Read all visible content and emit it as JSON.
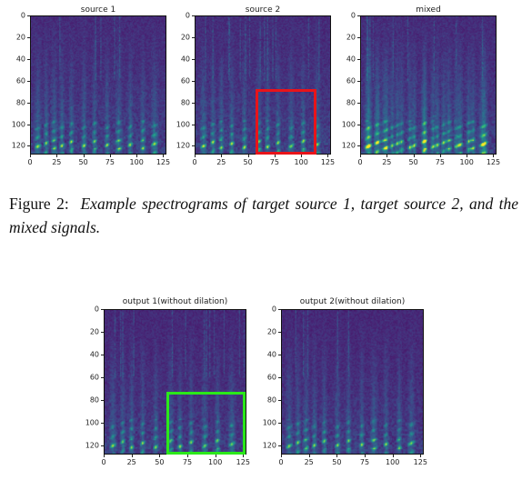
{
  "figure_top": {
    "panels": [
      {
        "title": "source 1",
        "y_ticks": [
          "0",
          "20",
          "40",
          "60",
          "80",
          "100",
          "120"
        ],
        "x_ticks": [
          "0",
          "25",
          "50",
          "75",
          "100",
          "125"
        ],
        "variant": "source1",
        "highlight": null
      },
      {
        "title": "source 2",
        "y_ticks": [
          "0",
          "20",
          "40",
          "60",
          "80",
          "100",
          "120"
        ],
        "x_ticks": [
          "0",
          "25",
          "50",
          "75",
          "100",
          "125"
        ],
        "variant": "source2",
        "highlight": {
          "color": "#e8141a",
          "x_range": [
            57,
            114
          ],
          "y_range": [
            68,
            128
          ]
        }
      },
      {
        "title": "mixed",
        "y_ticks": [
          "0",
          "20",
          "40",
          "60",
          "80",
          "100",
          "120"
        ],
        "x_ticks": [
          "0",
          "25",
          "50",
          "75",
          "100",
          "125"
        ],
        "variant": "mixed",
        "highlight": null
      }
    ]
  },
  "caption": {
    "label": "Figure 2:",
    "text": "Example spectrograms of target source 1, target source 2, and the mixed signals."
  },
  "figure_bottom": {
    "panels": [
      {
        "title": "output 1(without dilation)",
        "y_ticks": [
          "0",
          "20",
          "40",
          "60",
          "80",
          "100",
          "120"
        ],
        "x_ticks": [
          "0",
          "25",
          "50",
          "75",
          "100",
          "125"
        ],
        "variant": "out1",
        "highlight": {
          "color": "#2be81a",
          "x_range": [
            56,
            127
          ],
          "y_range": [
            73,
            128
          ]
        }
      },
      {
        "title": "output 2(without dilation)",
        "y_ticks": [
          "0",
          "20",
          "40",
          "60",
          "80",
          "100",
          "120"
        ],
        "x_ticks": [
          "0",
          "25",
          "50",
          "75",
          "100",
          "125"
        ],
        "variant": "out2",
        "highlight": null
      }
    ]
  },
  "colors": {
    "viridis_low": "#440154",
    "viridis_high": "#fde725"
  }
}
